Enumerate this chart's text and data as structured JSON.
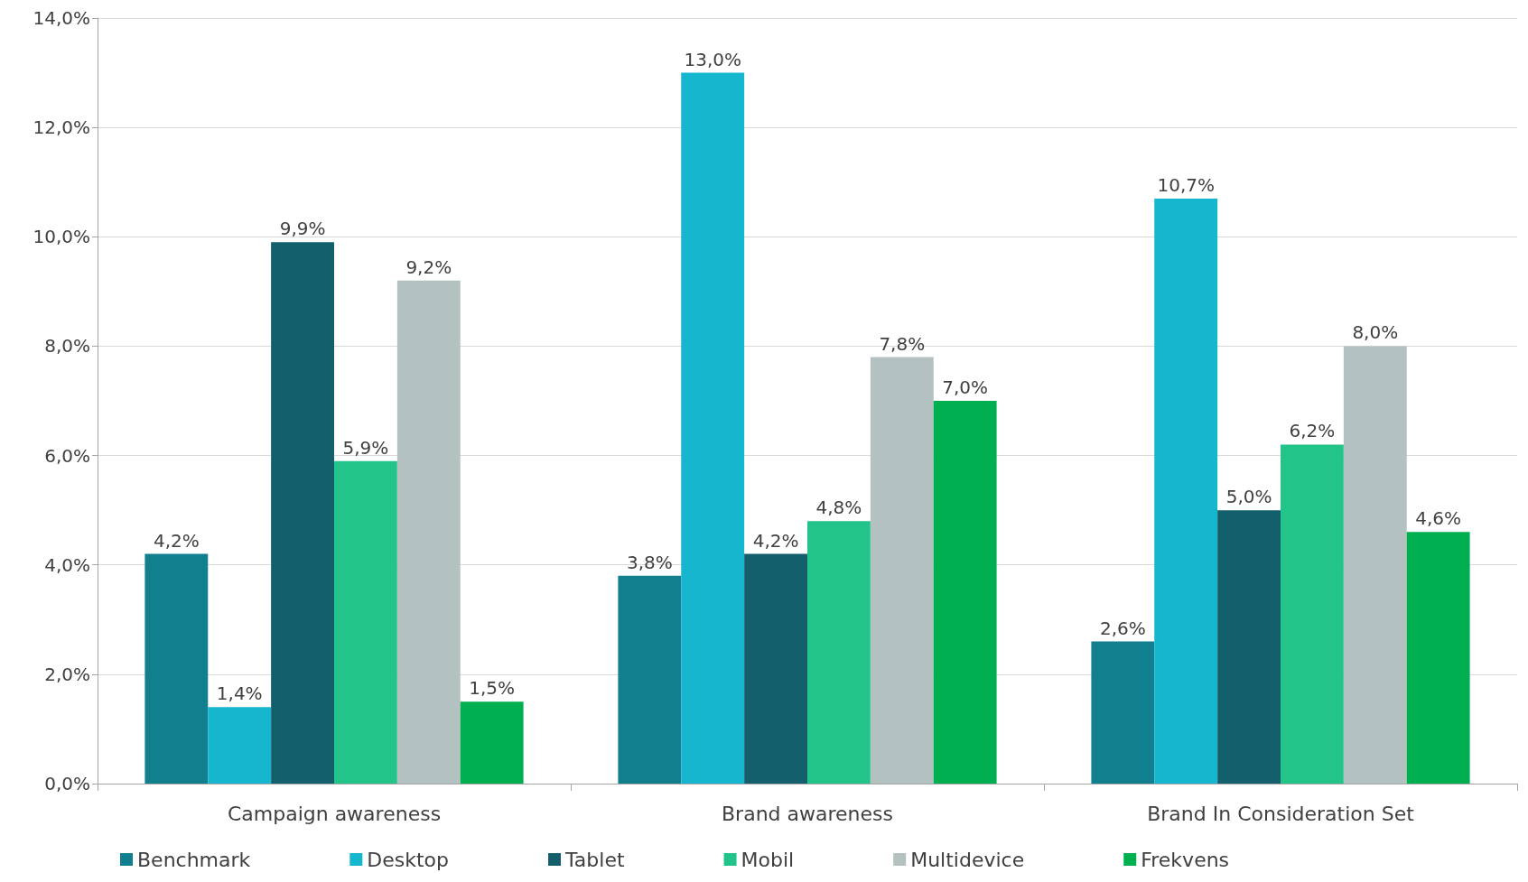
{
  "chart_data": {
    "type": "bar",
    "categories": [
      "Campaign awareness",
      "Brand awareness",
      "Brand In Consideration Set"
    ],
    "series": [
      {
        "name": "Benchmark",
        "color": "#127f8f",
        "values": [
          4.2,
          3.8,
          2.6
        ],
        "value_labels": [
          "4,2%",
          "3,8%",
          "2,6%"
        ]
      },
      {
        "name": "Desktop",
        "color": "#17b6cf",
        "values": [
          1.4,
          13.0,
          10.7
        ],
        "value_labels": [
          "1,4%",
          "13,0%",
          "10,7%"
        ]
      },
      {
        "name": "Tablet",
        "color": "#135f6b",
        "values": [
          9.9,
          4.2,
          5.0
        ],
        "value_labels": [
          "9,9%",
          "4,2%",
          "5,0%"
        ]
      },
      {
        "name": "Mobil",
        "color": "#22c48a",
        "values": [
          5.9,
          4.8,
          6.2
        ],
        "value_labels": [
          "5,9%",
          "4,8%",
          "6,2%"
        ]
      },
      {
        "name": "Multidevice",
        "color": "#b3c2c1",
        "values": [
          9.2,
          7.8,
          8.0
        ],
        "value_labels": [
          "9,2%",
          "7,8%",
          "8,0%"
        ]
      },
      {
        "name": "Frekvens",
        "color": "#00b050",
        "values": [
          1.5,
          7.0,
          4.6
        ],
        "value_labels": [
          "1,5%",
          "7,0%",
          "4,6%"
        ]
      }
    ],
    "ylim": [
      0,
      14
    ],
    "yticks": [
      {
        "value": 0,
        "label": "0,0%"
      },
      {
        "value": 2,
        "label": "2,0%"
      },
      {
        "value": 4,
        "label": "4,0%"
      },
      {
        "value": 6,
        "label": "6,0%"
      },
      {
        "value": 8,
        "label": "8,0%"
      },
      {
        "value": 10,
        "label": "10,0%"
      },
      {
        "value": 12,
        "label": "12,0%"
      },
      {
        "value": 14,
        "label": "14,0%"
      }
    ],
    "grid": "y",
    "legend": "bottom"
  }
}
